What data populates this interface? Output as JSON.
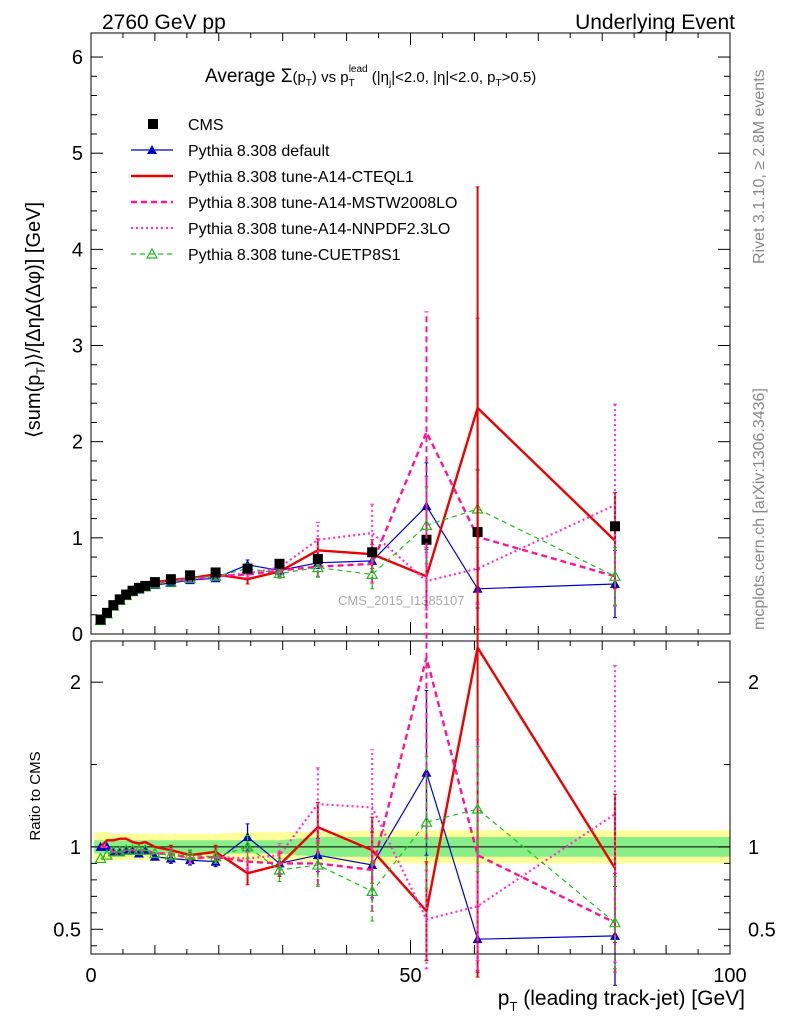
{
  "header": {
    "left": "2760 GeV pp",
    "right": "Underlying Event"
  },
  "side": {
    "rivet": "Rivet 3.1.10, ≥ 2.8M events",
    "mcplots": "mcplots.cern.ch [arXiv:1306.3436]"
  },
  "watermark": "CMS_2015_I1385107",
  "colors": {
    "data": "#000000",
    "default": "#0000cc",
    "a14cteq": "#ee0000",
    "mstw": "#ff1493",
    "nnpdf": "#ff33cc",
    "cuetp8s1": "#22bb22",
    "band_inner": "#88ee88",
    "band_outer": "#ffff99"
  },
  "chart_data": [
    {
      "type": "line",
      "title": "Average Σ(p_T) vs p_T^lead (|η_j|<2.0, |η|<2.0, p_T>0.5)",
      "title_parts": {
        "t1": "Average ",
        "sigma": "Σ",
        "t2": "(p",
        "t3": "T",
        "t4": ") vs p",
        "t5": "T",
        "t6": "lead",
        "t7": " (|η",
        "t8": "j",
        "t9": "|<2.0, |η|<2.0, p",
        "t10": "T",
        "t11": ">0.5)"
      },
      "ylabel": "⟨sum(p_T)⟩/[ΔηΔ(Δφ)] [GeV]",
      "ylabel_parts": {
        "a": "⟨sum(p",
        "b": "T",
        "c": ")⟩/[ΔηΔ(Δφ)] [GeV]"
      },
      "xlim": [
        0,
        100
      ],
      "ylim": [
        0,
        6.25
      ],
      "yticks": [
        0,
        1,
        2,
        3,
        4,
        5,
        6
      ],
      "legend_position": "top-left",
      "x": [
        1.5,
        2.5,
        3.5,
        4.5,
        5.5,
        6.5,
        7.5,
        8.5,
        10,
        12.5,
        15.5,
        19.5,
        24.5,
        29.5,
        35.5,
        44,
        52.5,
        60.5,
        82
      ],
      "series": [
        {
          "name": "CMS",
          "key": "data",
          "style": "square",
          "values": [
            0.15,
            0.22,
            0.3,
            0.36,
            0.41,
            0.45,
            0.48,
            0.5,
            0.54,
            0.57,
            0.61,
            0.64,
            0.68,
            0.73,
            0.78,
            0.85,
            0.98,
            1.06,
            1.12
          ]
        },
        {
          "name": "Pythia 8.308 default",
          "key": "default",
          "style": "solid-triangle",
          "values": [
            0.15,
            0.22,
            0.29,
            0.35,
            0.4,
            0.44,
            0.46,
            0.49,
            0.51,
            0.53,
            0.56,
            0.58,
            0.72,
            0.66,
            0.74,
            0.76,
            1.33,
            0.47,
            0.52
          ],
          "err": [
            0,
            0,
            0,
            0,
            0,
            0,
            0,
            0,
            0,
            0.02,
            0.02,
            0.02,
            0.05,
            0.04,
            0.06,
            0.12,
            0.45,
            0.2,
            0.35
          ]
        },
        {
          "name": "Pythia 8.308 tune-A14-CTEQL1",
          "key": "a14cteq",
          "style": "solid-thick",
          "values": [
            0.15,
            0.23,
            0.31,
            0.38,
            0.43,
            0.46,
            0.49,
            0.52,
            0.54,
            0.56,
            0.58,
            0.62,
            0.57,
            0.65,
            0.87,
            0.83,
            0.6,
            2.35,
            0.97
          ],
          "err": [
            0,
            0,
            0,
            0,
            0,
            0,
            0,
            0,
            0,
            0.02,
            0.02,
            0.03,
            0.05,
            0.05,
            0.12,
            0.15,
            0.3,
            2.3,
            0.5
          ]
        },
        {
          "name": "Pythia 8.308 tune-A14-MSTW2008LO",
          "key": "mstw",
          "style": "dashed-thick",
          "values": [
            0.15,
            0.22,
            0.29,
            0.35,
            0.4,
            0.44,
            0.47,
            0.49,
            0.52,
            0.55,
            0.57,
            0.6,
            0.62,
            0.66,
            0.7,
            0.73,
            2.1,
            1.01,
            0.6
          ],
          "err": [
            0,
            0,
            0,
            0,
            0,
            0,
            0,
            0,
            0,
            0.02,
            0.02,
            0.03,
            0.04,
            0.05,
            0.1,
            0.2,
            1.25,
            0.7,
            0.3
          ]
        },
        {
          "name": "Pythia 8.308 tune-A14-NNPDF2.3LO",
          "key": "nnpdf",
          "style": "dotted",
          "values": [
            0.15,
            0.22,
            0.29,
            0.35,
            0.4,
            0.44,
            0.47,
            0.49,
            0.52,
            0.55,
            0.57,
            0.6,
            0.63,
            0.69,
            0.98,
            1.05,
            0.55,
            0.68,
            1.34
          ],
          "err": [
            0,
            0,
            0,
            0,
            0,
            0,
            0,
            0,
            0,
            0.02,
            0.02,
            0.03,
            0.04,
            0.05,
            0.18,
            0.3,
            0.3,
            0.35,
            1.05
          ]
        },
        {
          "name": "Pythia 8.308 tune-CUETP8S1",
          "key": "cuetp8s1",
          "style": "dashed-open-triangle",
          "values": [
            0.14,
            0.21,
            0.29,
            0.35,
            0.4,
            0.44,
            0.47,
            0.49,
            0.52,
            0.54,
            0.58,
            0.6,
            0.68,
            0.63,
            0.69,
            0.62,
            1.13,
            1.3,
            0.6
          ],
          "err": [
            0,
            0,
            0,
            0,
            0,
            0,
            0,
            0,
            0,
            0.02,
            0.02,
            0.03,
            0.05,
            0.05,
            0.1,
            0.15,
            0.4,
            0.4,
            0.3
          ]
        }
      ]
    },
    {
      "type": "line",
      "ylabel": "Ratio to CMS",
      "xlabel": "p_T (leading track-jet) [GeV]",
      "xlabel_parts": {
        "a": "p",
        "b": "T",
        "c": " (leading track-jet) [GeV]"
      },
      "xlim": [
        0,
        100
      ],
      "xticks": [
        0,
        50,
        100
      ],
      "ylim": [
        0.35,
        2.25
      ],
      "yticks": [
        0.5,
        1,
        2
      ],
      "band_inner_halfwidth": [
        0.04,
        0.04,
        0.04,
        0.04,
        0.04,
        0.04,
        0.04,
        0.04,
        0.04,
        0.04,
        0.04,
        0.04,
        0.04,
        0.04,
        0.06,
        0.06,
        0.06,
        0.06,
        0.06
      ],
      "band_outer_halfwidth": [
        0.09,
        0.09,
        0.08,
        0.08,
        0.08,
        0.08,
        0.08,
        0.08,
        0.08,
        0.08,
        0.08,
        0.08,
        0.09,
        0.09,
        0.09,
        0.1,
        0.1,
        0.1,
        0.1
      ],
      "series": [
        {
          "name": "Pythia 8.308 default",
          "key": "default",
          "values": [
            1.0,
            1.0,
            0.97,
            0.97,
            0.98,
            0.98,
            0.96,
            0.98,
            0.94,
            0.93,
            0.92,
            0.91,
            1.06,
            0.9,
            0.95,
            0.89,
            1.45,
            0.44,
            0.46
          ],
          "err": [
            0,
            0,
            0,
            0,
            0,
            0,
            0,
            0,
            0,
            0.03,
            0.03,
            0.03,
            0.08,
            0.06,
            0.1,
            0.2,
            0.5,
            0.2,
            0.3
          ]
        },
        {
          "name": "Pythia 8.308 tune-A14-CTEQL1",
          "key": "a14cteq",
          "values": [
            1.0,
            1.04,
            1.04,
            1.05,
            1.05,
            1.03,
            1.02,
            1.03,
            1.0,
            0.98,
            0.95,
            0.97,
            0.84,
            0.89,
            1.12,
            0.98,
            0.61,
            2.21,
            0.87
          ],
          "err": [
            0,
            0,
            0,
            0,
            0,
            0,
            0,
            0,
            0,
            0.03,
            0.03,
            0.04,
            0.07,
            0.07,
            0.15,
            0.2,
            0.3,
            2.0,
            0.45
          ]
        },
        {
          "name": "Pythia 8.308 tune-A14-MSTW2008LO",
          "key": "mstw",
          "values": [
            1.0,
            1.0,
            0.97,
            0.97,
            0.98,
            0.98,
            0.98,
            0.98,
            0.96,
            0.96,
            0.93,
            0.94,
            0.91,
            0.9,
            0.9,
            0.86,
            2.15,
            0.95,
            0.54
          ],
          "err": [
            0,
            0,
            0,
            0,
            0,
            0,
            0,
            0,
            0,
            0.03,
            0.03,
            0.04,
            0.06,
            0.07,
            0.13,
            0.25,
            1.1,
            0.7,
            0.3
          ]
        },
        {
          "name": "Pythia 8.308 tune-A14-NNPDF2.3LO",
          "key": "nnpdf",
          "values": [
            1.0,
            1.0,
            0.97,
            0.97,
            0.98,
            0.98,
            0.98,
            0.98,
            0.96,
            0.96,
            0.93,
            0.94,
            0.93,
            0.95,
            1.26,
            1.24,
            0.56,
            0.64,
            1.2
          ],
          "err": [
            0,
            0,
            0,
            0,
            0,
            0,
            0,
            0,
            0,
            0.03,
            0.03,
            0.04,
            0.06,
            0.07,
            0.22,
            0.35,
            0.3,
            0.33,
            0.9
          ]
        },
        {
          "name": "Pythia 8.308 tune-CUETP8S1",
          "key": "cuetp8s1",
          "values": [
            0.93,
            0.95,
            0.97,
            0.97,
            0.98,
            0.98,
            0.98,
            0.98,
            0.96,
            0.95,
            0.95,
            0.94,
            1.0,
            0.86,
            0.89,
            0.73,
            1.15,
            1.23,
            0.54
          ],
          "err": [
            0,
            0,
            0,
            0,
            0,
            0,
            0,
            0,
            0,
            0.03,
            0.03,
            0.04,
            0.07,
            0.07,
            0.13,
            0.18,
            0.4,
            0.38,
            0.28
          ]
        }
      ]
    }
  ]
}
